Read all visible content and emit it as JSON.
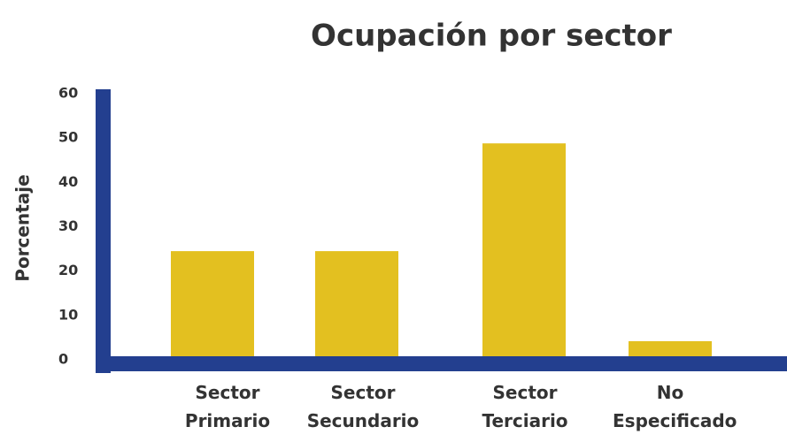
{
  "chart_data": {
    "type": "bar",
    "title": "Ocupación por sector",
    "y_label": "Porcentaje",
    "categories": [
      "Sector Primario",
      "Sector Secundario",
      "Sector Terciario",
      "No Especificado"
    ],
    "values": [
      24.5,
      24.5,
      48.8,
      4.2
    ],
    "color": "#e3c020",
    "axis_color": "#233f8f",
    "ylim": [
      0,
      60
    ],
    "yticks": [
      0,
      10,
      20,
      30,
      40,
      50,
      60
    ],
    "grid": false
  }
}
